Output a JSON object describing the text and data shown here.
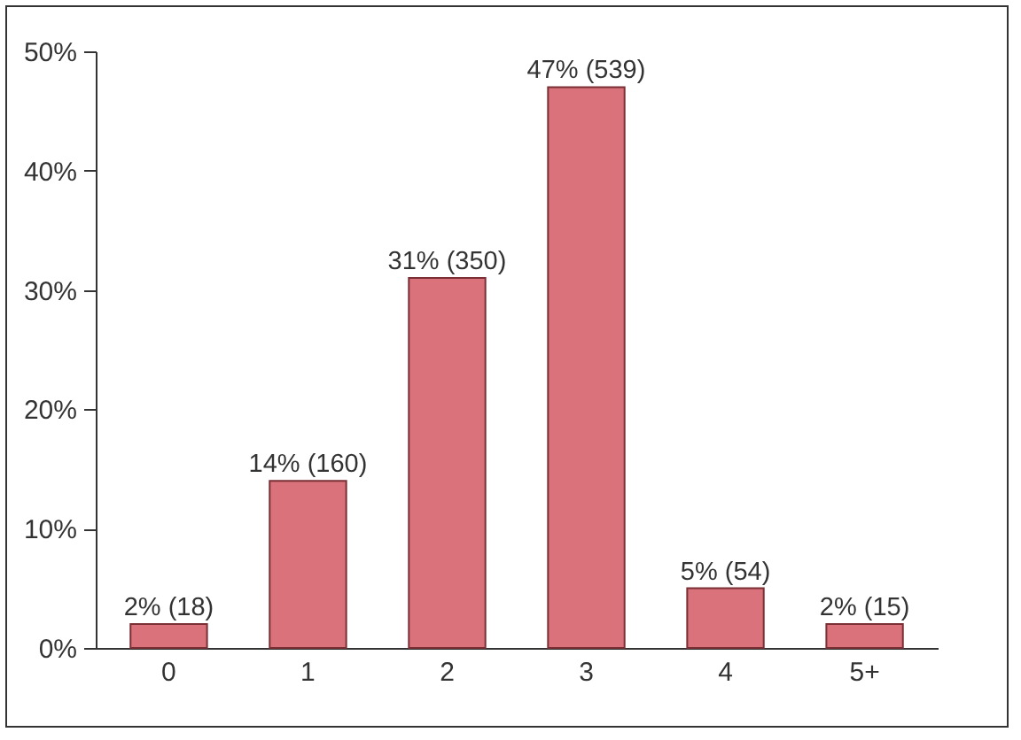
{
  "chart_data": {
    "type": "bar",
    "categories": [
      "0",
      "1",
      "2",
      "3",
      "4",
      "5+"
    ],
    "values": [
      2,
      14,
      31,
      47,
      5,
      2
    ],
    "value_labels": [
      "2% (18)",
      "14% (160)",
      "31% (350)",
      "47% (539)",
      "5% (54)",
      "2% (15)"
    ],
    "color": "#d9727a",
    "ylim": [
      0,
      50
    ],
    "yticks": [
      {
        "value": 0,
        "label": "0%"
      },
      {
        "value": 10,
        "label": "10%"
      },
      {
        "value": 20,
        "label": "20%"
      },
      {
        "value": 30,
        "label": "30%"
      },
      {
        "value": 40,
        "label": "40%"
      },
      {
        "value": 50,
        "label": "50%"
      }
    ],
    "grid": false
  }
}
